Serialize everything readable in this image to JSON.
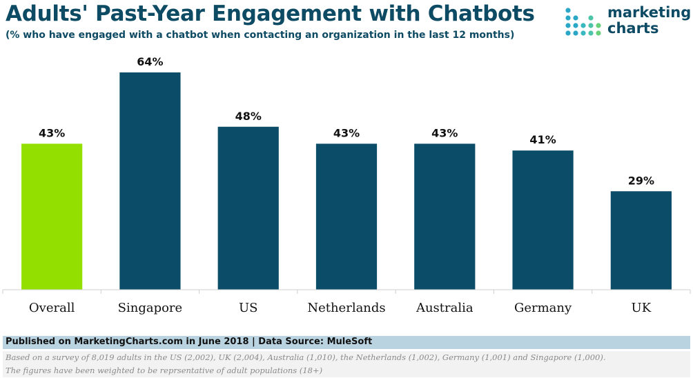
{
  "header": {
    "title": "Adults' Past-Year Engagement with Chatbots",
    "subtitle": "(% who have engaged with a chatbot when contacting an organization in the last 12 months)"
  },
  "logo": {
    "line1": "marketing",
    "line2": "charts"
  },
  "chart_data": {
    "type": "bar",
    "categories": [
      "Overall",
      "Singapore",
      "US",
      "Netherlands",
      "Australia",
      "Germany",
      "UK"
    ],
    "values": [
      43,
      64,
      48,
      43,
      43,
      41,
      29
    ],
    "data_labels": [
      "43%",
      "64%",
      "48%",
      "43%",
      "43%",
      "41%",
      "29%"
    ],
    "unit": "%",
    "ylim": [
      0,
      64
    ],
    "colors": [
      "#93e000",
      "#0b4d69",
      "#0b4d69",
      "#0b4d69",
      "#0b4d69",
      "#0b4d69",
      "#0b4d69"
    ],
    "grid": false,
    "legend": "none"
  },
  "footer": {
    "published": "Published on MarketingCharts.com in June 2018 | Data Source: MuleSoft",
    "note1": "Based on a survey of 8,019 adults in the US (2,002), UK (2,004), Australia (1,010), the Netherlands (1,002), Germany (1,001) and Singapore (1,000).",
    "note2": "The figures have been weighted to be reprsentative of adult populations (18+)"
  }
}
